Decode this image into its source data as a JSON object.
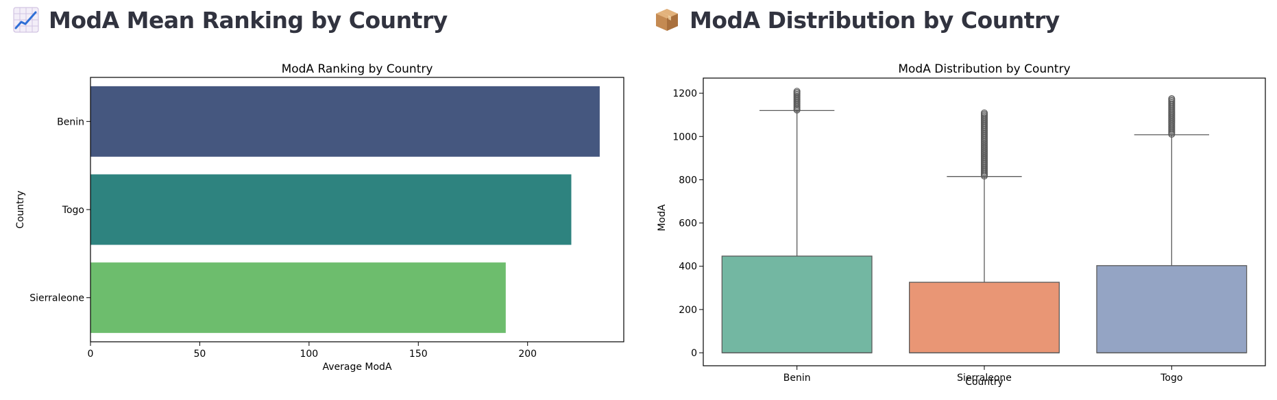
{
  "sections": [
    {
      "heading": "ModA Mean Ranking by Country",
      "icon": "chart-increasing-icon"
    },
    {
      "heading": "ModA Distribution by Country",
      "icon": "package-icon"
    }
  ],
  "chart_data": [
    {
      "type": "bar",
      "orientation": "horizontal",
      "title": "ModA Ranking by Country",
      "xlabel": "Average ModA",
      "ylabel": "Country",
      "categories": [
        "Benin",
        "Togo",
        "Sierraleone"
      ],
      "values": [
        233,
        220,
        190
      ],
      "colors": [
        "#45577f",
        "#2e837f",
        "#6dbd6d"
      ],
      "xlim": [
        0,
        244
      ],
      "xticks": [
        0,
        50,
        100,
        150,
        200
      ],
      "grid": false
    },
    {
      "type": "box",
      "title": "ModA Distribution by Country",
      "xlabel": "Country",
      "ylabel": "ModA",
      "categories": [
        "Benin",
        "Sierraleone",
        "Togo"
      ],
      "colors": [
        "#73b7a2",
        "#e99675",
        "#94a4c4"
      ],
      "boxes": [
        {
          "q1": 0,
          "median": 0,
          "q3": 447,
          "whisker_low": 0,
          "whisker_high": 1120,
          "outliers_min": 1122,
          "outliers_max": 1209
        },
        {
          "q1": 0,
          "median": 0,
          "q3": 326,
          "whisker_low": 0,
          "whisker_high": 815,
          "outliers_min": 817,
          "outliers_max": 1109
        },
        {
          "q1": 0,
          "median": 0,
          "q3": 403,
          "whisker_low": 0,
          "whisker_high": 1008,
          "outliers_min": 1010,
          "outliers_max": 1175
        }
      ],
      "ylim": [
        -60,
        1270
      ],
      "yticks": [
        0,
        200,
        400,
        600,
        800,
        1000,
        1200
      ],
      "grid": false
    }
  ]
}
